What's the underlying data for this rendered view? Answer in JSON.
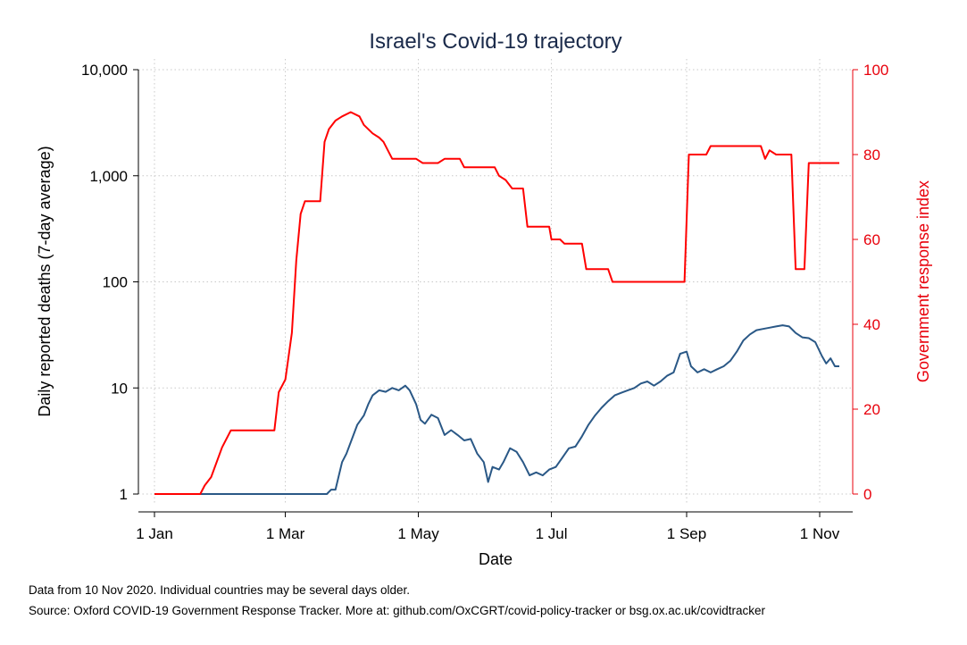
{
  "chart_data": {
    "type": "line",
    "title": "Israel's Covid-19 trajectory",
    "xlabel": "Date",
    "ylabel_left": "Daily reported deaths (7-day average)",
    "ylabel_right": "Government response index",
    "x_ticks": [
      "1 Jan",
      "1 Mar",
      "1 May",
      "1 Jul",
      "1 Sep",
      "1 Nov"
    ],
    "x_tick_dates": [
      "2020-01-01",
      "2020-03-01",
      "2020-05-01",
      "2020-07-01",
      "2020-09-01",
      "2020-11-01"
    ],
    "xlim": [
      "2020-01-01",
      "2020-11-10"
    ],
    "y_left_ticks": [
      "1",
      "10",
      "100",
      "1,000",
      "10,000"
    ],
    "y_left_tick_values": [
      1,
      10,
      100,
      1000,
      10000
    ],
    "y_left_scale": "log",
    "y_left_lim": [
      1,
      10000
    ],
    "y_right_ticks": [
      "0",
      "20",
      "40",
      "60",
      "80",
      "100"
    ],
    "y_right_tick_values": [
      0,
      20,
      40,
      60,
      80,
      100
    ],
    "y_right_lim": [
      0,
      100
    ],
    "grid": true,
    "colors": {
      "deaths": "#2a5886",
      "response": "#ff0000",
      "right_axis": "#e8000b",
      "title": "#1a2a4a"
    },
    "series": [
      {
        "axis": "left",
        "color": "#2a5886",
        "points": [
          [
            "2020-01-01",
            1
          ],
          [
            "2020-03-20",
            1
          ],
          [
            "2020-03-22",
            1.1
          ],
          [
            "2020-03-24",
            1.1
          ],
          [
            "2020-03-27",
            2
          ],
          [
            "2020-03-29",
            2.4
          ],
          [
            "2020-04-01",
            3.5
          ],
          [
            "2020-04-03",
            4.5
          ],
          [
            "2020-04-06",
            5.5
          ],
          [
            "2020-04-08",
            7
          ],
          [
            "2020-04-10",
            8.5
          ],
          [
            "2020-04-13",
            9.5
          ],
          [
            "2020-04-16",
            9.2
          ],
          [
            "2020-04-19",
            10
          ],
          [
            "2020-04-22",
            9.5
          ],
          [
            "2020-04-25",
            10.5
          ],
          [
            "2020-04-27",
            9.5
          ],
          [
            "2020-04-30",
            7
          ],
          [
            "2020-05-02",
            5
          ],
          [
            "2020-05-04",
            4.6
          ],
          [
            "2020-05-07",
            5.6
          ],
          [
            "2020-05-10",
            5.2
          ],
          [
            "2020-05-13",
            3.6
          ],
          [
            "2020-05-16",
            4
          ],
          [
            "2020-05-19",
            3.6
          ],
          [
            "2020-05-22",
            3.2
          ],
          [
            "2020-05-25",
            3.3
          ],
          [
            "2020-05-28",
            2.4
          ],
          [
            "2020-05-31",
            2
          ],
          [
            "2020-06-02",
            1.3
          ],
          [
            "2020-06-04",
            1.8
          ],
          [
            "2020-06-07",
            1.7
          ],
          [
            "2020-06-09",
            2
          ],
          [
            "2020-06-12",
            2.7
          ],
          [
            "2020-06-15",
            2.5
          ],
          [
            "2020-06-18",
            2
          ],
          [
            "2020-06-21",
            1.5
          ],
          [
            "2020-06-24",
            1.6
          ],
          [
            "2020-06-27",
            1.5
          ],
          [
            "2020-06-30",
            1.7
          ],
          [
            "2020-07-03",
            1.8
          ],
          [
            "2020-07-06",
            2.2
          ],
          [
            "2020-07-09",
            2.7
          ],
          [
            "2020-07-12",
            2.8
          ],
          [
            "2020-07-15",
            3.5
          ],
          [
            "2020-07-18",
            4.5
          ],
          [
            "2020-07-21",
            5.5
          ],
          [
            "2020-07-24",
            6.5
          ],
          [
            "2020-07-27",
            7.5
          ],
          [
            "2020-07-30",
            8.5
          ],
          [
            "2020-08-02",
            9
          ],
          [
            "2020-08-05",
            9.5
          ],
          [
            "2020-08-08",
            10
          ],
          [
            "2020-08-11",
            11
          ],
          [
            "2020-08-14",
            11.5
          ],
          [
            "2020-08-17",
            10.5
          ],
          [
            "2020-08-20",
            11.5
          ],
          [
            "2020-08-23",
            13
          ],
          [
            "2020-08-26",
            14
          ],
          [
            "2020-08-29",
            21
          ],
          [
            "2020-09-01",
            22
          ],
          [
            "2020-09-03",
            16
          ],
          [
            "2020-09-06",
            14
          ],
          [
            "2020-09-09",
            15
          ],
          [
            "2020-09-12",
            14
          ],
          [
            "2020-09-15",
            15
          ],
          [
            "2020-09-18",
            16
          ],
          [
            "2020-09-21",
            18
          ],
          [
            "2020-09-24",
            22
          ],
          [
            "2020-09-27",
            28
          ],
          [
            "2020-09-30",
            32
          ],
          [
            "2020-10-03",
            35
          ],
          [
            "2020-10-06",
            36
          ],
          [
            "2020-10-09",
            37
          ],
          [
            "2020-10-12",
            38
          ],
          [
            "2020-10-15",
            39
          ],
          [
            "2020-10-18",
            38
          ],
          [
            "2020-10-21",
            33
          ],
          [
            "2020-10-24",
            30
          ],
          [
            "2020-10-27",
            29.5
          ],
          [
            "2020-10-30",
            27
          ],
          [
            "2020-11-02",
            20
          ],
          [
            "2020-11-04",
            17
          ],
          [
            "2020-11-06",
            19
          ],
          [
            "2020-11-08",
            16
          ],
          [
            "2020-11-10",
            16
          ]
        ]
      },
      {
        "axis": "right",
        "color": "#ff0000",
        "points": [
          [
            "2020-01-01",
            0
          ],
          [
            "2020-01-22",
            0
          ],
          [
            "2020-01-24",
            2
          ],
          [
            "2020-01-27",
            4
          ],
          [
            "2020-02-01",
            11
          ],
          [
            "2020-02-05",
            15
          ],
          [
            "2020-02-25",
            15
          ],
          [
            "2020-02-27",
            24
          ],
          [
            "2020-03-01",
            27
          ],
          [
            "2020-03-04",
            38
          ],
          [
            "2020-03-06",
            55
          ],
          [
            "2020-03-08",
            66
          ],
          [
            "2020-03-10",
            69
          ],
          [
            "2020-03-17",
            69
          ],
          [
            "2020-03-19",
            83
          ],
          [
            "2020-03-21",
            86
          ],
          [
            "2020-03-24",
            88
          ],
          [
            "2020-03-27",
            89
          ],
          [
            "2020-03-31",
            90
          ],
          [
            "2020-04-04",
            89
          ],
          [
            "2020-04-06",
            87
          ],
          [
            "2020-04-10",
            85
          ],
          [
            "2020-04-13",
            84
          ],
          [
            "2020-04-15",
            83
          ],
          [
            "2020-04-19",
            79
          ],
          [
            "2020-04-30",
            79
          ],
          [
            "2020-05-03",
            78
          ],
          [
            "2020-05-10",
            78
          ],
          [
            "2020-05-13",
            79
          ],
          [
            "2020-05-20",
            79
          ],
          [
            "2020-05-22",
            77
          ],
          [
            "2020-06-05",
            77
          ],
          [
            "2020-06-07",
            75
          ],
          [
            "2020-06-10",
            74
          ],
          [
            "2020-06-13",
            72
          ],
          [
            "2020-06-18",
            72
          ],
          [
            "2020-06-20",
            63
          ],
          [
            "2020-06-30",
            63
          ],
          [
            "2020-07-01",
            60
          ],
          [
            "2020-07-05",
            60
          ],
          [
            "2020-07-07",
            59
          ],
          [
            "2020-07-15",
            59
          ],
          [
            "2020-07-17",
            53
          ],
          [
            "2020-07-27",
            53
          ],
          [
            "2020-07-29",
            50
          ],
          [
            "2020-08-31",
            50
          ],
          [
            "2020-09-02",
            80
          ],
          [
            "2020-09-10",
            80
          ],
          [
            "2020-09-12",
            82
          ],
          [
            "2020-10-05",
            82
          ],
          [
            "2020-10-07",
            79
          ],
          [
            "2020-10-09",
            81
          ],
          [
            "2020-10-12",
            80
          ],
          [
            "2020-10-19",
            80
          ],
          [
            "2020-10-21",
            53
          ],
          [
            "2020-10-25",
            53
          ],
          [
            "2020-10-27",
            78
          ],
          [
            "2020-11-10",
            78
          ]
        ]
      }
    ]
  },
  "footnotes": {
    "line1": "Data from 10 Nov 2020. Individual countries may be several days older.",
    "line2": "Source: Oxford COVID-19 Government Response Tracker. More at: github.com/OxCGRT/covid-policy-tracker or bsg.ox.ac.uk/covidtracker"
  }
}
